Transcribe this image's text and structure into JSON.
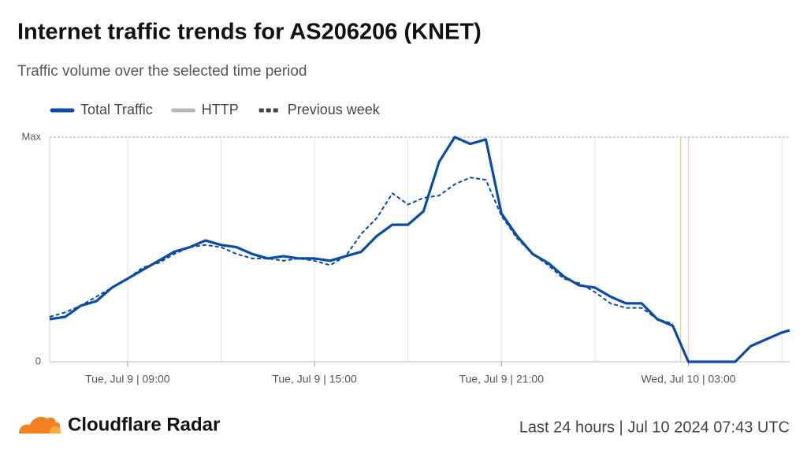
{
  "chart_data": {
    "type": "line",
    "title": "Internet traffic trends for AS206206 (KNET)",
    "subtitle": "Traffic volume over the selected time period",
    "x": [
      "2024-07-09T06:30",
      "2024-07-09T07:00",
      "2024-07-09T07:30",
      "2024-07-09T08:00",
      "2024-07-09T08:30",
      "2024-07-09T09:00",
      "2024-07-09T09:30",
      "2024-07-09T10:00",
      "2024-07-09T10:30",
      "2024-07-09T11:00",
      "2024-07-09T11:30",
      "2024-07-09T12:00",
      "2024-07-09T12:30",
      "2024-07-09T13:00",
      "2024-07-09T13:30",
      "2024-07-09T14:00",
      "2024-07-09T14:30",
      "2024-07-09T15:00",
      "2024-07-09T15:30",
      "2024-07-09T16:00",
      "2024-07-09T16:30",
      "2024-07-09T17:00",
      "2024-07-09T17:30",
      "2024-07-09T18:00",
      "2024-07-09T18:30",
      "2024-07-09T19:00",
      "2024-07-09T19:30",
      "2024-07-09T20:00",
      "2024-07-09T20:30",
      "2024-07-09T21:00",
      "2024-07-09T21:30",
      "2024-07-09T22:00",
      "2024-07-09T22:30",
      "2024-07-09T23:00",
      "2024-07-09T23:30",
      "2024-07-10T00:00",
      "2024-07-10T00:30",
      "2024-07-10T01:00",
      "2024-07-10T01:30",
      "2024-07-10T02:00",
      "2024-07-10T02:30",
      "2024-07-10T03:00",
      "2024-07-10T03:30",
      "2024-07-10T04:00",
      "2024-07-10T04:30",
      "2024-07-10T05:00",
      "2024-07-10T05:30",
      "2024-07-10T06:00",
      "2024-07-10T06:15"
    ],
    "series": [
      {
        "name": "Total Traffic",
        "color": "#0a4ba3",
        "dash": false,
        "values": [
          0.19,
          0.2,
          0.25,
          0.27,
          0.33,
          0.37,
          0.41,
          0.45,
          0.49,
          0.51,
          0.54,
          0.52,
          0.51,
          0.48,
          0.46,
          0.47,
          0.46,
          0.46,
          0.45,
          0.47,
          0.49,
          0.56,
          0.61,
          0.61,
          0.67,
          0.89,
          1.0,
          0.97,
          0.99,
          0.66,
          0.56,
          0.48,
          0.44,
          0.38,
          0.34,
          0.33,
          0.29,
          0.26,
          0.26,
          0.19,
          0.16,
          0,
          0,
          0,
          0,
          0.07,
          0.1,
          0.13,
          0.14
        ]
      },
      {
        "name": "HTTP",
        "color": "#b8b8b8",
        "dash": false,
        "values": [
          null,
          null,
          null,
          null,
          null,
          null,
          null,
          null,
          null,
          null,
          null,
          null,
          null,
          null,
          null,
          null,
          null,
          null,
          null,
          null,
          null,
          null,
          null,
          null,
          null,
          null,
          null,
          null,
          null,
          null,
          null,
          null,
          null,
          null,
          null,
          null,
          null,
          null,
          null,
          null,
          null,
          null,
          null,
          null,
          null,
          null,
          null,
          null,
          null
        ]
      },
      {
        "name": "Previous week",
        "color": "#0a4ba3",
        "dash": true,
        "values": [
          0.2,
          0.22,
          0.25,
          0.29,
          0.33,
          0.37,
          0.42,
          0.44,
          0.48,
          0.51,
          0.52,
          0.51,
          0.48,
          0.46,
          0.46,
          0.45,
          0.46,
          0.45,
          0.43,
          0.47,
          0.57,
          0.64,
          0.75,
          0.7,
          0.73,
          0.74,
          0.79,
          0.82,
          0.81,
          0.65,
          0.55,
          0.48,
          0.43,
          0.37,
          0.35,
          0.31,
          0.26,
          0.24,
          0.24,
          0.19,
          0.17,
          null,
          null,
          null,
          null,
          null,
          null,
          null,
          null
        ]
      }
    ],
    "xlim": [
      "2024-07-09T06:30",
      "2024-07-10T06:15"
    ],
    "xticks": [
      {
        "value": "2024-07-09T09:00",
        "label": "Tue, Jul 9 | 09:00"
      },
      {
        "value": "2024-07-09T15:00",
        "label": "Tue, Jul 9 | 15:00"
      },
      {
        "value": "2024-07-09T21:00",
        "label": "Tue, Jul 9 | 21:00"
      },
      {
        "value": "2024-07-10T03:00",
        "label": "Wed, Jul 10 | 03:00"
      }
    ],
    "xminorticks": [
      "2024-07-09T12:00",
      "2024-07-09T18:00",
      "2024-07-10T00:00",
      "2024-07-10T06:00"
    ],
    "markers": [
      {
        "x": "2024-07-10T02:45",
        "color": "#f7d774"
      },
      {
        "x": "2024-07-10T03:00",
        "color": "#f2c6d0"
      }
    ],
    "ylim": [
      0,
      1
    ],
    "yticks": [
      0,
      {
        "value": 1,
        "label": "Max"
      }
    ],
    "grid": true,
    "legend": "top-left"
  },
  "footer": {
    "brand": "Cloudflare Radar",
    "period": "Last 24 hours | Jul 10 2024 07:43 UTC"
  }
}
